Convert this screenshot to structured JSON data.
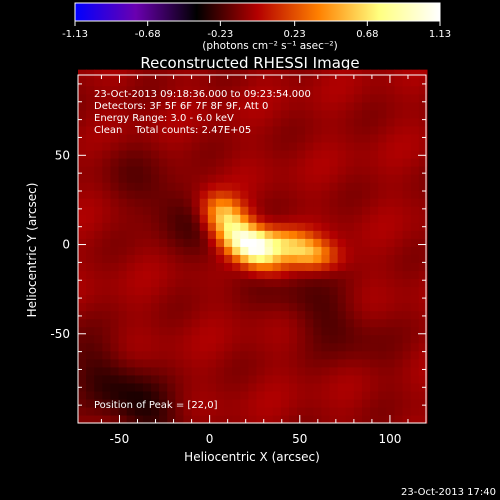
{
  "chart_data": {
    "type": "heatmap",
    "title": "Reconstructed RHESSI Image",
    "xlabel": "Heliocentric X (arcsec)",
    "ylabel": "Heliocentric Y (arcsec)",
    "xlim": [
      -73,
      120
    ],
    "ylim": [
      -100,
      95
    ],
    "xticks": [
      -50,
      0,
      50,
      100
    ],
    "yticks": [
      -50,
      0,
      50
    ],
    "colorbar": {
      "range": [
        -1.13,
        1.13
      ],
      "ticks": [
        "-1.13",
        "-0.68",
        "-0.23",
        "0.23",
        "0.68",
        "1.13"
      ],
      "label": "(photons cm⁻² s⁻¹ asec⁻²)",
      "colors": [
        "#0000ff",
        "#6a00b0",
        "#000000",
        "#b40000",
        "#ff8000",
        "#ffff80",
        "#ffffff"
      ]
    },
    "annotations": [
      "23-Oct-2013 09:18:36.000 to 09:23:54.000",
      "Detectors: 3F 5F 6F 7F 8F 9F, Att 0",
      "Energy Range: 3.0 - 6.0 keV",
      "Clean    Total counts: 2.47E+05"
    ],
    "peak_label": "Position of Peak = [22,0]",
    "peak": [
      22,
      0
    ],
    "sources": [
      {
        "x": 22,
        "y": 0,
        "amp": 1.13
      },
      {
        "x": 8,
        "y": 18,
        "amp": 0.55
      },
      {
        "x": 55,
        "y": -5,
        "amp": 0.55
      },
      {
        "x": 38,
        "y": 2,
        "amp": 0.45
      }
    ],
    "negative_bands": [
      {
        "x": -20,
        "y": 20,
        "amp": -0.15
      },
      {
        "x": 60,
        "y": -35,
        "amp": -0.15
      },
      {
        "x": -45,
        "y": -85,
        "amp": -0.25
      }
    ]
  },
  "footer_timestamp": "23-Oct-2013 17:40"
}
